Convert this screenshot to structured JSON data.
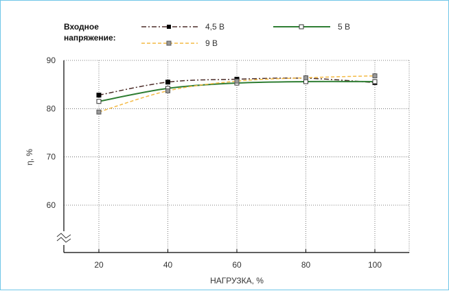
{
  "legend": {
    "title_line1": "Входное",
    "title_line2": "напряжение:",
    "entries": [
      "4,5 В",
      "5 В",
      "9 В"
    ]
  },
  "colors": {
    "frame": "#6ec6e8",
    "series_4_5": "#4a2a26",
    "series_5": "#2e7d32",
    "series_9": "#f4b942",
    "grid": "#555555",
    "axis": "#000000"
  },
  "chart_data": {
    "type": "line",
    "title": "",
    "xlabel": "НАГРУЗКА, %",
    "ylabel": "η, %",
    "x": [
      20,
      40,
      60,
      80,
      100
    ],
    "x_ticks": [
      "20",
      "40",
      "60",
      "80",
      "100"
    ],
    "y_ticks": [
      "60",
      "70",
      "80",
      "90"
    ],
    "ylim": [
      60,
      90
    ],
    "axis_break": true,
    "grid": "dotted",
    "legend_position": "top",
    "series": [
      {
        "name": "4,5 В",
        "values": [
          82.8,
          85.5,
          86.1,
          86.3,
          85.4
        ],
        "line": "dash-dot",
        "marker": "filled-square"
      },
      {
        "name": "5 В",
        "values": [
          81.5,
          84.2,
          85.3,
          85.6,
          85.6
        ],
        "line": "solid",
        "marker": "open-square"
      },
      {
        "name": "9 В",
        "values": [
          79.3,
          83.7,
          85.7,
          86.4,
          86.8
        ],
        "line": "dashed",
        "marker": "gray-square"
      }
    ]
  }
}
